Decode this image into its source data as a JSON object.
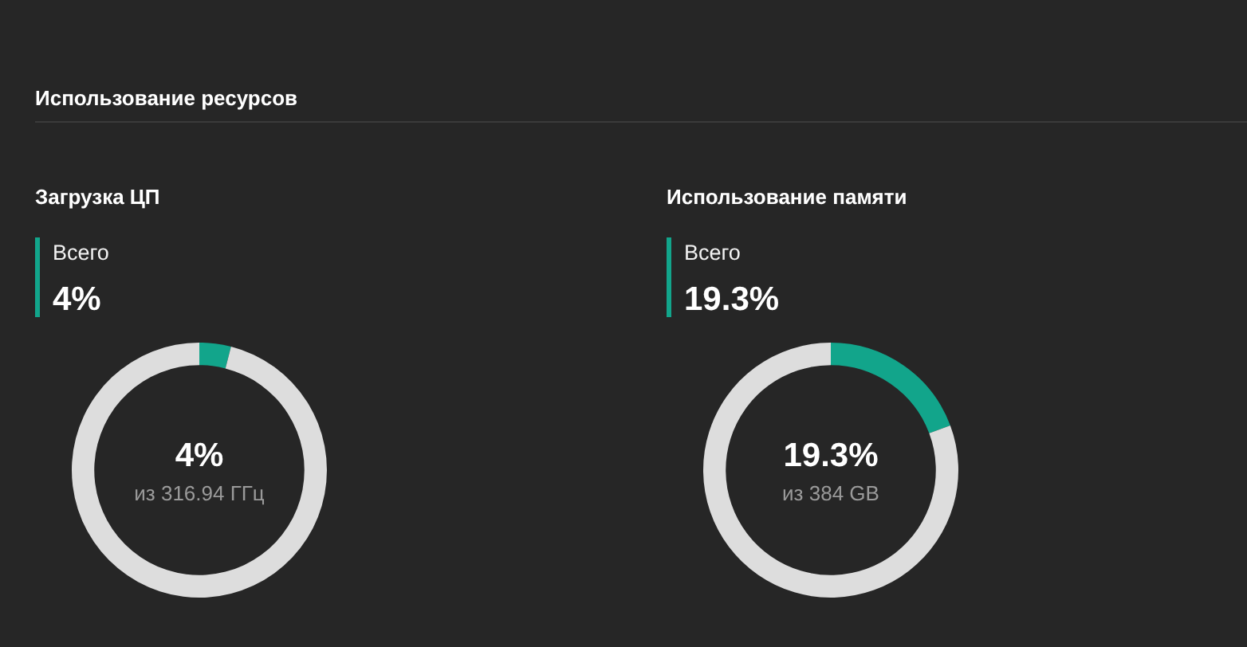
{
  "chart_data": [
    {
      "type": "donut",
      "title": "Использование ресурсов",
      "subtitle": "Загрузка ЦП",
      "categories": [
        null,
        null
      ],
      "values": [
        4,
        96
      ],
      "colors": [
        "#12a58b",
        "#dddddd"
      ],
      "annotations": [
        "Всего",
        "4%",
        "4%",
        "из 316.94 ГГц"
      ]
    },
    {
      "type": "donut",
      "subtitle": "Использование памяти",
      "categories": [
        null,
        null
      ],
      "values": [
        19.3,
        80.7
      ],
      "colors": [
        "#12a58b",
        "#dddddd"
      ],
      "annotations": [
        "Всего",
        "19.3%",
        "19.3%",
        "из 384 GB"
      ]
    }
  ]
}
